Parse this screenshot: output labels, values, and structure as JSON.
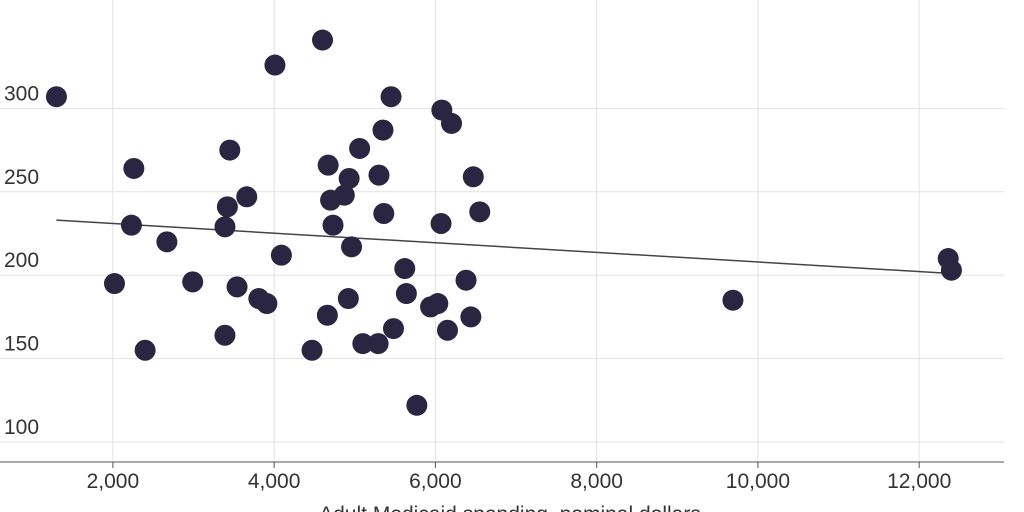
{
  "chart_data": {
    "type": "scatter",
    "title": "",
    "xlabel": "Adult Medicaid spending, nominal dollars",
    "ylabel": "",
    "xlim": [
      600,
      13300
    ],
    "ylim": [
      88,
      365
    ],
    "x_ticks": [
      2000,
      4000,
      6000,
      8000,
      10000,
      12000
    ],
    "x_tick_labels": [
      "2,000",
      "4,000",
      "6,000",
      "8,000",
      "10,000",
      "12,000"
    ],
    "y_ticks": [
      100,
      150,
      200,
      250,
      300
    ],
    "y_tick_labels": [
      "100",
      "150",
      "200",
      "250",
      "300"
    ],
    "grid": true,
    "colors": {
      "point": "#2a2540",
      "trend": "#444444",
      "grid": "#e2e2e2"
    },
    "points": [
      {
        "x": 1300,
        "y": 307
      },
      {
        "x": 2020,
        "y": 195
      },
      {
        "x": 2230,
        "y": 230
      },
      {
        "x": 2260,
        "y": 264
      },
      {
        "x": 2400,
        "y": 155
      },
      {
        "x": 2670,
        "y": 220
      },
      {
        "x": 2990,
        "y": 196
      },
      {
        "x": 3390,
        "y": 164
      },
      {
        "x": 3390,
        "y": 229
      },
      {
        "x": 3420,
        "y": 241
      },
      {
        "x": 3450,
        "y": 275
      },
      {
        "x": 3540,
        "y": 193
      },
      {
        "x": 3660,
        "y": 247
      },
      {
        "x": 3810,
        "y": 186
      },
      {
        "x": 3910,
        "y": 183
      },
      {
        "x": 4010,
        "y": 326
      },
      {
        "x": 4090,
        "y": 212
      },
      {
        "x": 4470,
        "y": 155
      },
      {
        "x": 4600,
        "y": 341
      },
      {
        "x": 4660,
        "y": 176
      },
      {
        "x": 4670,
        "y": 266
      },
      {
        "x": 4700,
        "y": 245
      },
      {
        "x": 4730,
        "y": 230
      },
      {
        "x": 4870,
        "y": 248
      },
      {
        "x": 4920,
        "y": 186
      },
      {
        "x": 4930,
        "y": 258
      },
      {
        "x": 4960,
        "y": 217
      },
      {
        "x": 5060,
        "y": 276
      },
      {
        "x": 5100,
        "y": 159
      },
      {
        "x": 5290,
        "y": 159
      },
      {
        "x": 5300,
        "y": 260
      },
      {
        "x": 5350,
        "y": 287
      },
      {
        "x": 5360,
        "y": 237
      },
      {
        "x": 5450,
        "y": 307
      },
      {
        "x": 5480,
        "y": 168
      },
      {
        "x": 5620,
        "y": 204
      },
      {
        "x": 5640,
        "y": 189
      },
      {
        "x": 5770,
        "y": 122
      },
      {
        "x": 5940,
        "y": 181
      },
      {
        "x": 6030,
        "y": 183
      },
      {
        "x": 6070,
        "y": 231
      },
      {
        "x": 6080,
        "y": 299
      },
      {
        "x": 6150,
        "y": 167
      },
      {
        "x": 6200,
        "y": 291
      },
      {
        "x": 6380,
        "y": 197
      },
      {
        "x": 6440,
        "y": 175
      },
      {
        "x": 6470,
        "y": 259
      },
      {
        "x": 6550,
        "y": 238
      },
      {
        "x": 9690,
        "y": 185
      },
      {
        "x": 12360,
        "y": 210
      },
      {
        "x": 12400,
        "y": 203
      }
    ],
    "trend_line": {
      "x": [
        1300,
        12400
      ],
      "y": [
        233,
        201
      ]
    }
  }
}
